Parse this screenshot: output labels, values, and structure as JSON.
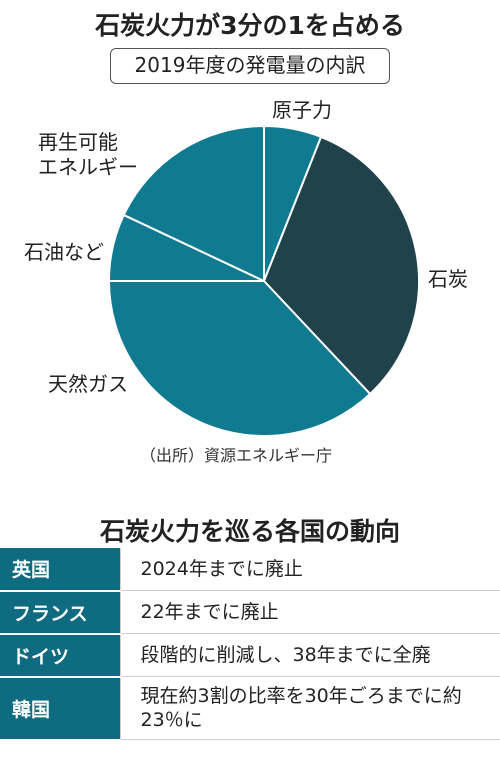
{
  "title": "石炭火力が3分の1を占める",
  "subtitle": "2019年度の発電量の内訳",
  "source": "（出所）資源エネルギー庁",
  "chart_data": {
    "type": "pie",
    "title": "石炭火力が3分の1を占める",
    "subtitle": "2019年度の発電量の内訳",
    "slices": [
      {
        "label": "原子力",
        "label_lines": [
          "原子力"
        ],
        "value": 6,
        "color": "#0f7a90"
      },
      {
        "label": "石炭",
        "label_lines": [
          "石炭"
        ],
        "value": 32,
        "color": "#1f424b"
      },
      {
        "label": "天然ガス",
        "label_lines": [
          "天然ガス"
        ],
        "value": 37,
        "color": "#0f7a90"
      },
      {
        "label": "石油など",
        "label_lines": [
          "石油など"
        ],
        "value": 7,
        "color": "#0f7a90"
      },
      {
        "label": "再生可能エネルギー",
        "label_lines": [
          "再生可能",
          "エネルギー"
        ],
        "value": 18,
        "color": "#0f7a90"
      }
    ],
    "unit": "%"
  },
  "table_title": "石炭火力を巡る各国の動向",
  "table": {
    "rows": [
      {
        "country": "英国",
        "policy": "2024年までに廃止"
      },
      {
        "country": "フランス",
        "policy": "22年までに廃止"
      },
      {
        "country": "ドイツ",
        "policy": "段階的に削減し、38年までに全廃"
      },
      {
        "country": "韓国",
        "policy": "現在約3割の比率を30年ごろまでに約23％に"
      }
    ]
  },
  "colors": {
    "accent": "#0f7a90",
    "coal": "#1f424b",
    "header_cell": "#0f6b80"
  }
}
